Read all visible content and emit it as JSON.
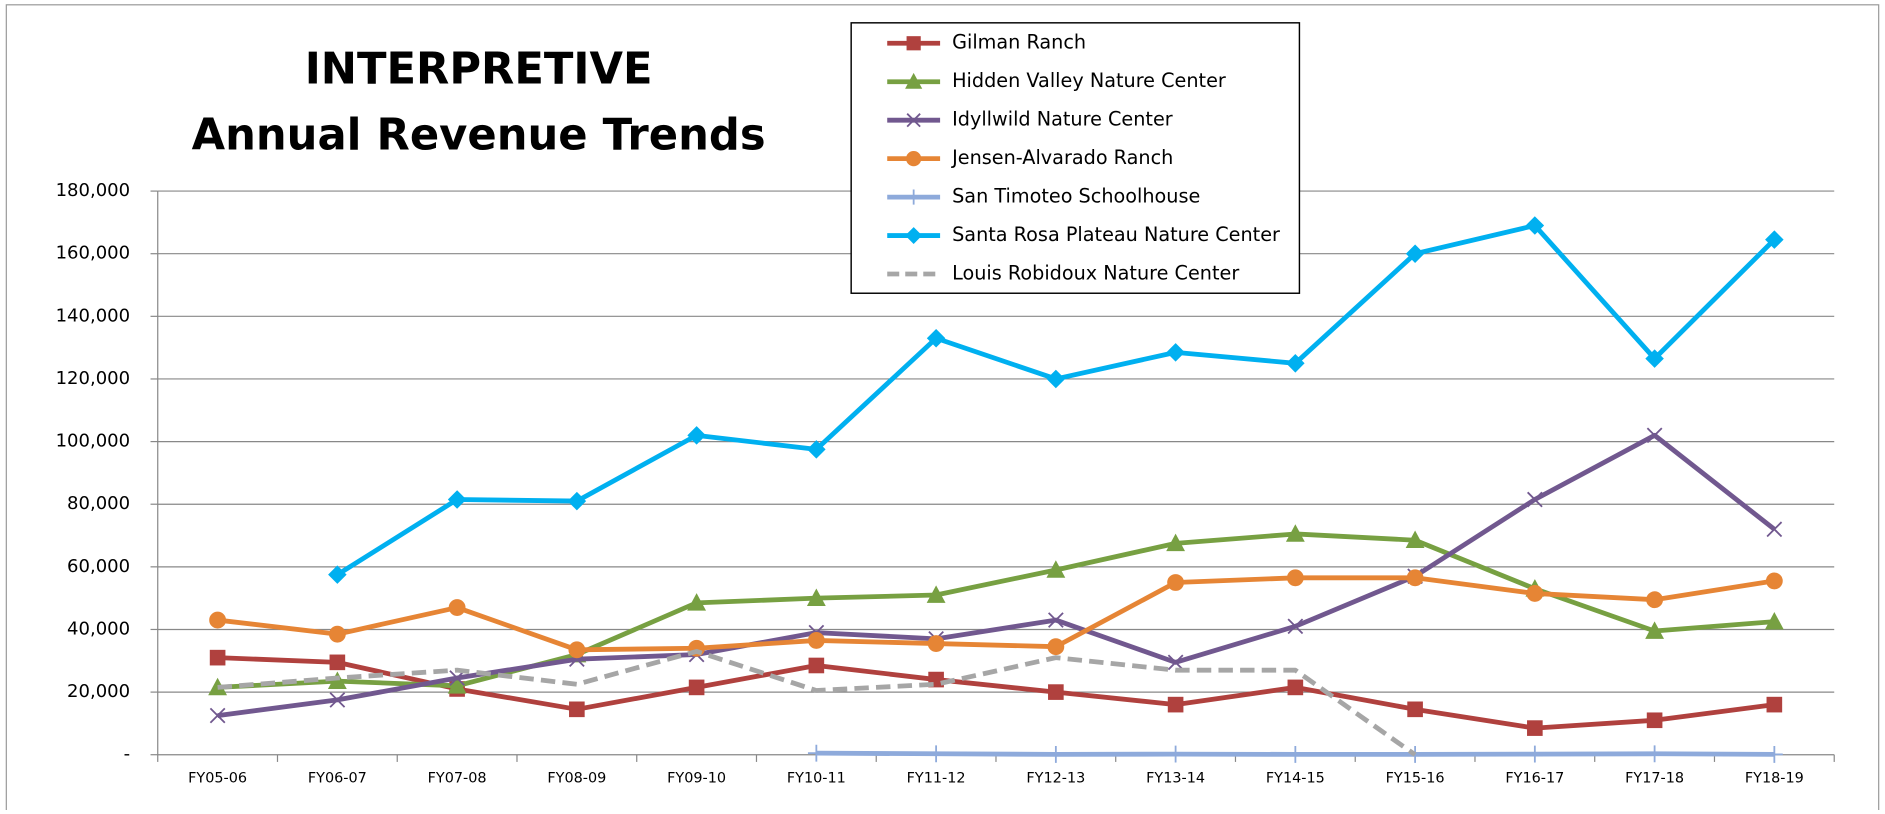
{
  "chart_data": {
    "type": "line",
    "title": "INTERPRETIVE",
    "subtitle": "Annual Revenue Trends",
    "categories": [
      "FY05-06",
      "FY06-07",
      "FY07-08",
      "FY08-09",
      "FY09-10",
      "FY10-11",
      "FY11-12",
      "FY12-13",
      "FY13-14",
      "FY14-15",
      "FY15-16",
      "FY16-17",
      "FY17-18",
      "FY18-19"
    ],
    "series": [
      {
        "name": "Gilman Ranch",
        "color": "#b0413e",
        "marker": "square",
        "values": [
          31000,
          29500,
          21000,
          14500,
          21500,
          28500,
          24000,
          20000,
          16000,
          21500,
          14500,
          8500,
          11000,
          16000
        ]
      },
      {
        "name": "Hidden Valley Nature Center",
        "color": "#77a042",
        "marker": "triangle",
        "values": [
          21500,
          23500,
          22000,
          32000,
          48500,
          50000,
          51000,
          59000,
          67500,
          70500,
          68500,
          53000,
          39500,
          42500
        ]
      },
      {
        "name": "Idyllwild Nature Center",
        "color": "#71588f",
        "marker": "x",
        "values": [
          12500,
          17500,
          24500,
          30500,
          32000,
          39000,
          37000,
          43000,
          29500,
          41000,
          57000,
          81500,
          102000,
          72000
        ]
      },
      {
        "name": "Jensen-Alvarado Ranch",
        "color": "#e68535",
        "marker": "circle",
        "values": [
          43000,
          38500,
          47000,
          33500,
          34000,
          36500,
          35500,
          34500,
          55000,
          56500,
          56500,
          51500,
          49500,
          55500
        ]
      },
      {
        "name": "San Timoteo Schoolhouse",
        "color": "#8eaadb",
        "marker": "plus",
        "values": [
          null,
          null,
          null,
          null,
          null,
          500,
          300,
          100,
          200,
          100,
          100,
          200,
          300,
          100
        ]
      },
      {
        "name": "Santa Rosa Plateau Nature Center",
        "color": "#00b0f0",
        "marker": "diamond",
        "values": [
          null,
          57500,
          81500,
          81000,
          102000,
          97500,
          133000,
          120000,
          128500,
          125000,
          160000,
          169000,
          126500,
          164500
        ]
      },
      {
        "name": "Louis Robidoux Nature Center",
        "color": "#a6a6a6",
        "marker": "none",
        "dash": true,
        "values": [
          21500,
          24500,
          27000,
          22500,
          33000,
          20500,
          22500,
          31000,
          27000,
          27000,
          0,
          null,
          null,
          null
        ]
      }
    ],
    "ylim": [
      0,
      180000
    ],
    "yticks": [
      {
        "value": 0,
        "label": "-"
      },
      {
        "value": 20000,
        "label": "20,000"
      },
      {
        "value": 40000,
        "label": "40,000"
      },
      {
        "value": 60000,
        "label": "60,000"
      },
      {
        "value": 80000,
        "label": "80,000"
      },
      {
        "value": 100000,
        "label": "100,000"
      },
      {
        "value": 120000,
        "label": "120,000"
      },
      {
        "value": 140000,
        "label": "140,000"
      },
      {
        "value": 160000,
        "label": "160,000"
      },
      {
        "value": 180000,
        "label": "180,000"
      }
    ],
    "grid": true
  }
}
